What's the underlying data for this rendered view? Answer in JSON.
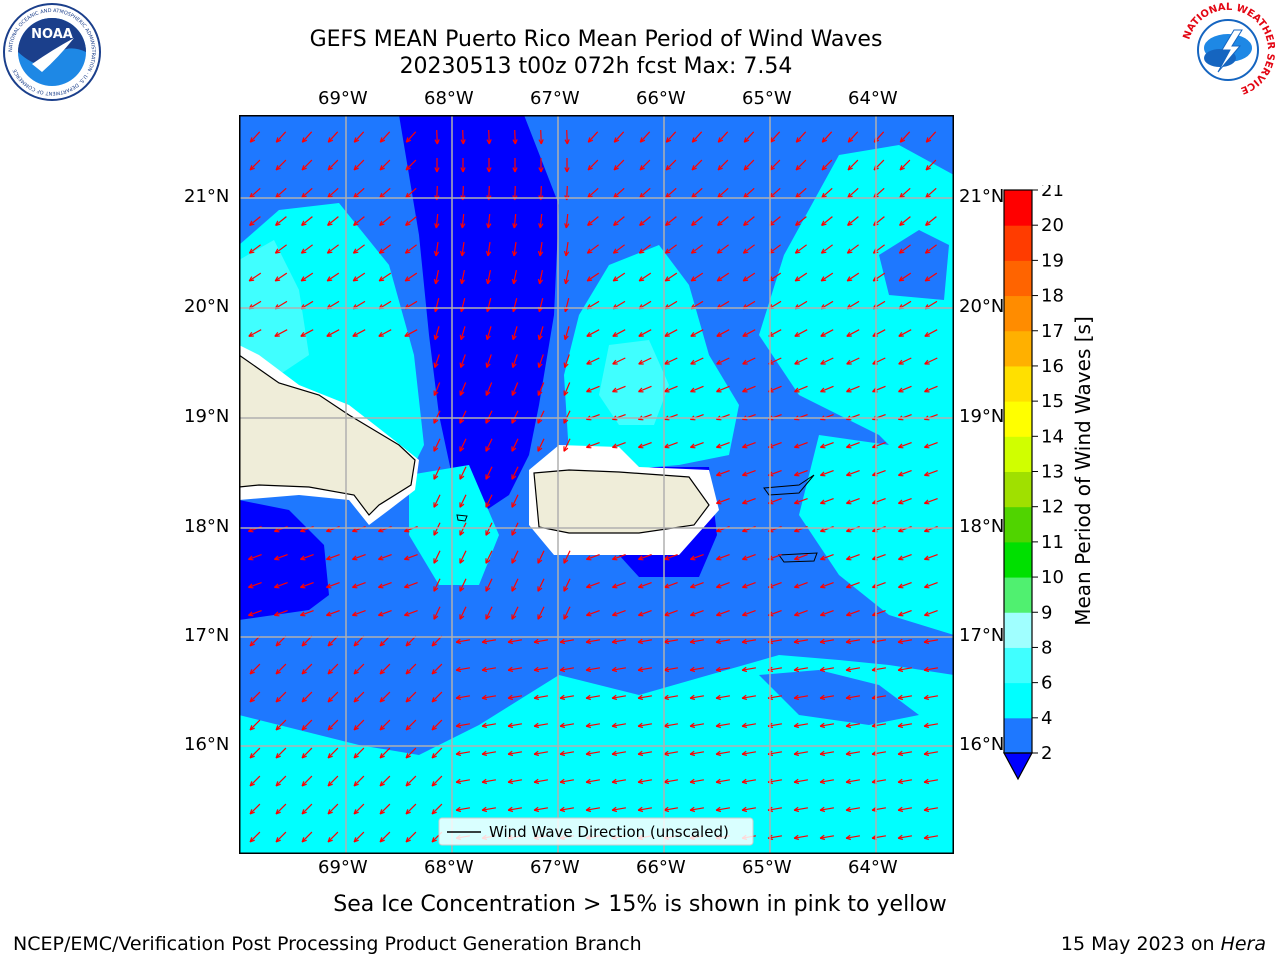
{
  "header": {
    "title_line1": "GEFS MEAN Puerto Rico Mean Period of Wind Waves",
    "title_line2": "20230513 t00z 072h fcst   Max: 7.54",
    "noaa_logo_text": "NOAA",
    "noaa_ring_text": "NATIONAL OCEANIC AND ATMOSPHERIC ADMINISTRATION · U.S. DEPARTMENT OF COMMERCE",
    "nws_ring_text": "NATIONAL WEATHER SERVICE"
  },
  "map": {
    "lon_ticks": [
      "69°W",
      "68°W",
      "67°W",
      "66°W",
      "65°W",
      "64°W"
    ],
    "lat_ticks": [
      "21°N",
      "20°N",
      "19°N",
      "18°N",
      "17°N",
      "16°N"
    ],
    "legend_label": "Wind Wave Direction (unscaled)",
    "arrow_color": "#ff0000",
    "land_color": "#efedd9",
    "grid_color": "#b0b0b0"
  },
  "colorbar": {
    "label": "Mean Period of Wind Waves [s]",
    "tick_labels": [
      "2",
      "4",
      "6",
      "8",
      "9",
      "10",
      "11",
      "12",
      "13",
      "14",
      "15",
      "16",
      "17",
      "18",
      "19",
      "20",
      "21"
    ],
    "colors": [
      "#0000ff",
      "#1e78ff",
      "#00ffff",
      "#40ffff",
      "#a0ffff",
      "#50f070",
      "#00e000",
      "#50d400",
      "#a0e000",
      "#d0ff00",
      "#ffff00",
      "#ffe000",
      "#ffb000",
      "#ff8c00",
      "#ff6400",
      "#ff3c00",
      "#ff0000"
    ]
  },
  "footer": {
    "note": "Sea Ice Concentration > 15% is shown in pink to yellow",
    "left": "NCEP/EMC/Verification Post Processing Product Generation Branch",
    "right_prefix": "15 May 2023 on ",
    "right_host": "Hera"
  }
}
